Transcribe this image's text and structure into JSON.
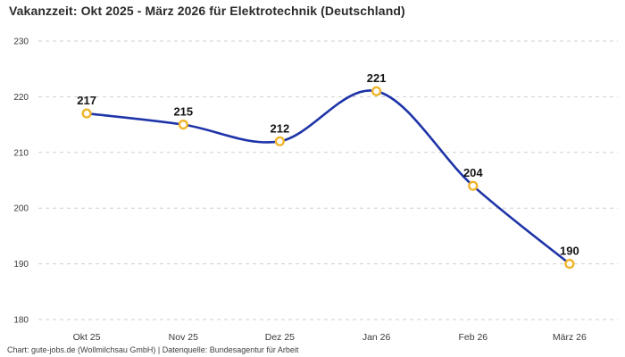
{
  "title": "Vakanzzeit: Okt 2025 - März 2026 für Elektrotechnik (Deutschland)",
  "footer": "Chart: gute-jobs.de (Wollmilchsau GmbH) | Datenquelle: Bundesagentur für Arbeit",
  "chart_data": {
    "type": "line",
    "title": "Vakanzzeit: Okt 2025 - März 2026 für Elektrotechnik (Deutschland)",
    "categories": [
      "Okt 25",
      "Nov 25",
      "Dez 25",
      "Jan 26",
      "Feb 26",
      "März 26"
    ],
    "values": [
      217,
      215,
      212,
      221,
      204,
      190
    ],
    "xlabel": "",
    "ylabel": "",
    "ylim": [
      180,
      230
    ],
    "yticks": [
      180,
      190,
      200,
      210,
      220,
      230
    ],
    "grid": "horizontal-dashed",
    "legend_position": "none",
    "line_style": "smooth",
    "data_labels_shown": true,
    "colors": {
      "line": "#1e34a8",
      "marker_stroke": "#f0b429",
      "marker_fill": "#ffffff",
      "grid": "#cfcfcf",
      "value_label": "#141414",
      "tick_label": "#3a3a3a"
    }
  }
}
